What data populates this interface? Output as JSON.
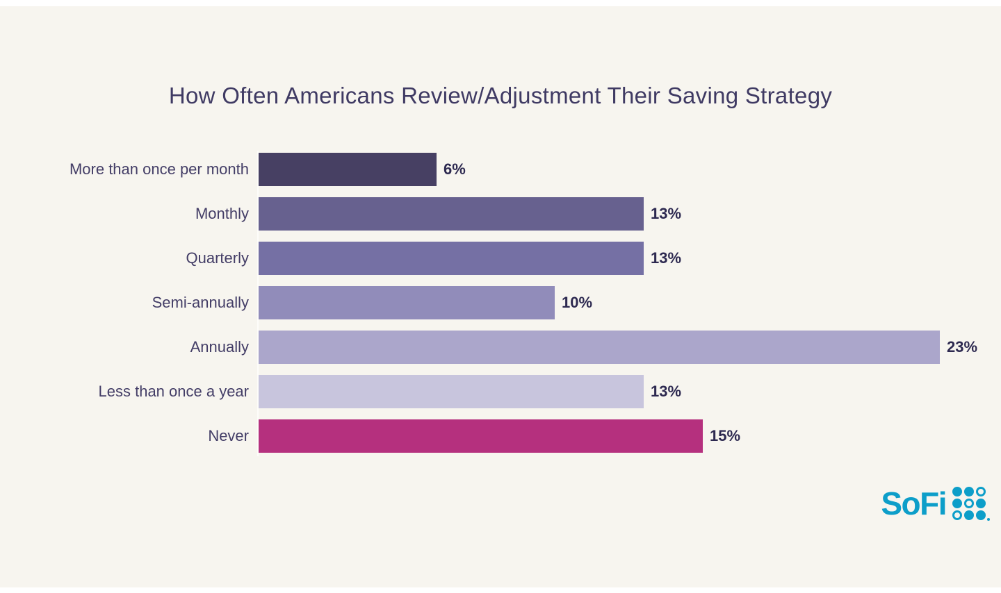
{
  "title": "How Often Americans Review/Adjustment Their Saving Strategy",
  "chart_data": {
    "type": "bar",
    "orientation": "horizontal",
    "title": "How Often Americans Review/Adjustment Their Saving Strategy",
    "categories": [
      "More than once per month",
      "Monthly",
      "Quarterly",
      "Semi-annually",
      "Annually",
      "Less than once a year",
      "Never"
    ],
    "values": [
      6,
      13,
      13,
      10,
      23,
      13,
      15
    ],
    "value_labels": [
      "6%",
      "13%",
      "13%",
      "10%",
      "23%",
      "13%",
      "15%"
    ],
    "bar_colors": [
      "#474063",
      "#67618f",
      "#7570a4",
      "#918cba",
      "#aba6cb",
      "#c8c5dd",
      "#b5307e"
    ],
    "xlim": [
      0,
      23
    ],
    "grid": false,
    "legend": false,
    "value_label_position": "right-of-bar"
  },
  "branding": {
    "logo_text": "SoFi",
    "logo_color": "#0d9ec9",
    "logo_grid_pattern": [
      [
        1,
        1,
        0
      ],
      [
        1,
        0,
        1
      ],
      [
        0,
        1,
        1
      ]
    ]
  },
  "colors": {
    "background": "#f7f5ef",
    "edge_strip": "#ffffff",
    "title_text": "#3f3a63",
    "category_text": "#433d66",
    "value_text": "#2d2950",
    "axis_line": "#fdfdfa",
    "accent_magenta": "#b5307e",
    "logo_teal": "#0d9ec9"
  }
}
